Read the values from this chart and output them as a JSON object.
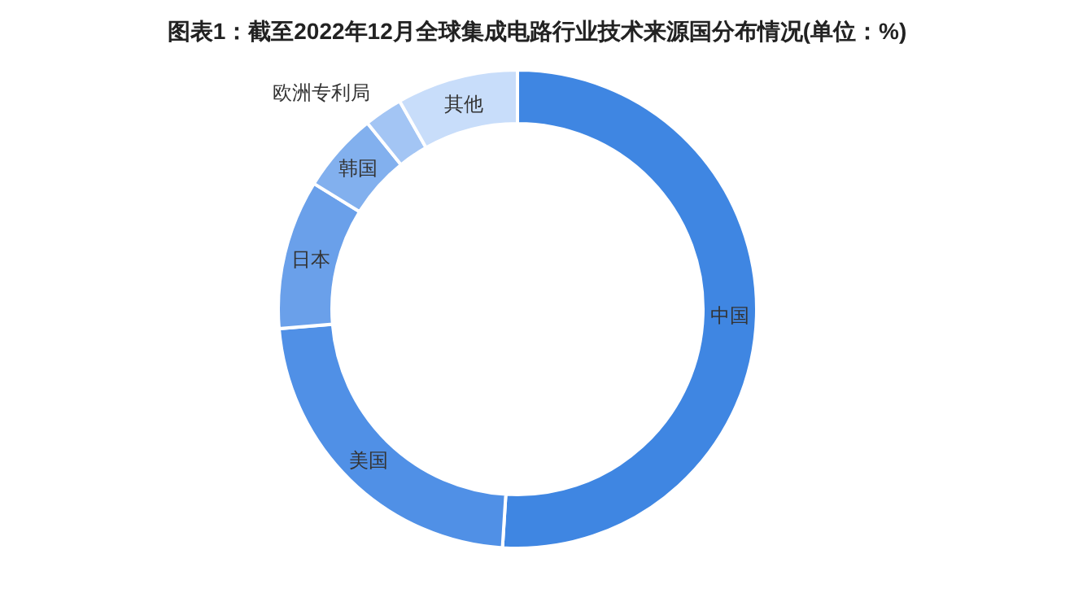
{
  "chart_data": {
    "type": "donut",
    "title": "图表1：截至2022年12月全球集成电路行业技术来源国分布情况(单位：%)",
    "categories": [
      "中国",
      "美国",
      "日本",
      "韩国",
      "欧洲专利局",
      "其他"
    ],
    "values": [
      51.0,
      22.7,
      10.1,
      5.4,
      2.6,
      8.2
    ],
    "colors": [
      "#3f86e2",
      "#5090e6",
      "#6aa0ea",
      "#82b0ee",
      "#a3c5f4",
      "#c8ddfa"
    ],
    "legend": false
  }
}
